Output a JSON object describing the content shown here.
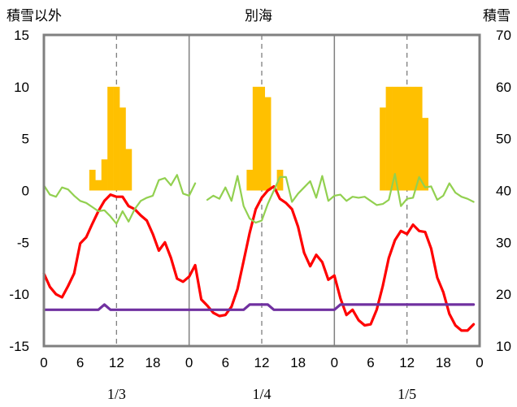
{
  "chart_data": {
    "type": "line",
    "title": "別海",
    "left_axis_label": "積雪以外",
    "right_axis_label": "積雪",
    "left_ylim": [
      -15,
      15
    ],
    "left_yticks": [
      15,
      10,
      5,
      0,
      -5,
      -10,
      -15
    ],
    "right_ylim": [
      10,
      70
    ],
    "right_yticks": [
      70,
      60,
      50,
      40,
      30,
      20,
      10
    ],
    "x_range": [
      0,
      72
    ],
    "x_tick_hours": [
      0,
      6,
      12,
      18,
      24,
      30,
      36,
      42,
      48,
      54,
      60,
      66,
      72
    ],
    "x_tick_labels": [
      "0",
      "6",
      "12",
      "18",
      "0",
      "6",
      "12",
      "18",
      "0",
      "6",
      "12",
      "18",
      "0"
    ],
    "date_labels": [
      {
        "hour": 12,
        "text": "1/3"
      },
      {
        "hour": 36,
        "text": "1/4"
      },
      {
        "hour": 60,
        "text": "1/5"
      }
    ],
    "grid": {
      "day_boundaries": [
        24,
        48
      ],
      "noon_dashed": [
        12,
        36,
        60
      ]
    },
    "colors": {
      "snow_bars": "#FFC000",
      "temperature": "#FF0000",
      "green_series": "#92D050",
      "purple_series": "#7030A0",
      "frame": "#808080"
    },
    "snow_bars": [
      {
        "hour": 8,
        "value": 2
      },
      {
        "hour": 9,
        "value": 1
      },
      {
        "hour": 10,
        "value": 3
      },
      {
        "hour": 11,
        "value": 10
      },
      {
        "hour": 12,
        "value": 10
      },
      {
        "hour": 13,
        "value": 8
      },
      {
        "hour": 14,
        "value": 4
      },
      {
        "hour": 34,
        "value": 2
      },
      {
        "hour": 35,
        "value": 10
      },
      {
        "hour": 36,
        "value": 10
      },
      {
        "hour": 37,
        "value": 9
      },
      {
        "hour": 39,
        "value": 2
      },
      {
        "hour": 56,
        "value": 8
      },
      {
        "hour": 57,
        "value": 10
      },
      {
        "hour": 58,
        "value": 10
      },
      {
        "hour": 59,
        "value": 10
      },
      {
        "hour": 60,
        "value": 10
      },
      {
        "hour": 61,
        "value": 10
      },
      {
        "hour": 62,
        "value": 10
      },
      {
        "hour": 63,
        "value": 7
      }
    ],
    "series": [
      {
        "color": "#FF0000",
        "axis": "left",
        "values": [
          -8,
          -9.3,
          -10,
          -10.3,
          -9.2,
          -8,
          -5.1,
          -4.5,
          -3.2,
          -2,
          -1,
          -0.4,
          -0.6,
          -0.6,
          -1.5,
          -1.8,
          -2.4,
          -2.9,
          -4.2,
          -5.8,
          -5,
          -6.5,
          -8.5,
          -8.8,
          -8.3,
          -7.2,
          -10.5,
          -11.1,
          -11.8,
          -12.1,
          -12,
          -11.2,
          -9.5,
          -6.8,
          -4.1,
          -1.8,
          -0.7,
          0,
          0.4,
          -0.8,
          -1.2,
          -1.8,
          -3.5,
          -6,
          -7.3,
          -6.2,
          -6.9,
          -8.6,
          -8.2,
          -10.4,
          -12,
          -11.5,
          -12.5,
          -13,
          -12.9,
          -11.5,
          -9.2,
          -6.5,
          -4.8,
          -3.9,
          -4.2,
          -3.3,
          -3.9,
          -4,
          -5.6,
          -8.4,
          -9.8,
          -11.9,
          -13,
          -13.5,
          -13.5,
          -12.9
        ]
      },
      {
        "color": "#92D050",
        "axis": "left",
        "values": [
          0.5,
          -0.4,
          -0.6,
          0.3,
          0.1,
          -0.5,
          -1,
          -1.2,
          -1.6,
          -2,
          -1.9,
          -2.5,
          -3.2,
          -2,
          -3,
          -1.8,
          -1,
          -0.7,
          -0.5,
          1,
          1.2,
          0.5,
          1.5,
          -0.3,
          -0.5,
          0.7,
          null,
          -0.9,
          -0.5,
          -0.8,
          0.3,
          -1,
          1.4,
          -1.5,
          -2.7,
          -3.1,
          -2.9,
          -1.3,
          0,
          1.3,
          1.3,
          -1.1,
          -0.3,
          0.3,
          0.9,
          -0.7,
          1.4,
          -1,
          -0.5,
          -0.4,
          -1,
          -0.6,
          -0.7,
          -0.6,
          -1,
          -1.4,
          -1.3,
          -0.9,
          1.6,
          -1.5,
          -0.8,
          -0.7,
          1.3,
          0.3,
          0.4,
          -0.9,
          -0.5,
          0.7,
          -0.2,
          -0.6,
          -0.8,
          -1.1
        ]
      },
      {
        "color": "#7030A0",
        "axis": "left",
        "values": [
          -11.5,
          -11.5,
          -11.5,
          -11.5,
          -11.5,
          -11.5,
          -11.5,
          -11.5,
          -11.5,
          -11.5,
          -11.0,
          -11.5,
          -11.5,
          -11.5,
          -11.5,
          -11.5,
          -11.5,
          -11.5,
          -11.5,
          -11.5,
          -11.5,
          -11.5,
          -11.5,
          -11.5,
          -11.5,
          -11.5,
          -11.5,
          -11.5,
          -11.5,
          -11.5,
          -11.5,
          -11.5,
          -11.5,
          -11.5,
          -11.0,
          -11.0,
          -11.0,
          -11.0,
          -11.5,
          -11.5,
          -11.5,
          -11.5,
          -11.5,
          -11.5,
          -11.5,
          -11.5,
          -11.5,
          -11.5,
          -11.5,
          -11.0,
          -11.0,
          -11.0,
          -11.0,
          -11.0,
          -11.0,
          -11.0,
          -11.0,
          -11.0,
          -11.0,
          -11.0,
          -11.0,
          -11.0,
          -11.0,
          -11.0,
          -11.0,
          -11.0,
          -11.0,
          -11.0,
          -11.0,
          -11.0,
          -11.0,
          -11.0
        ]
      }
    ]
  }
}
